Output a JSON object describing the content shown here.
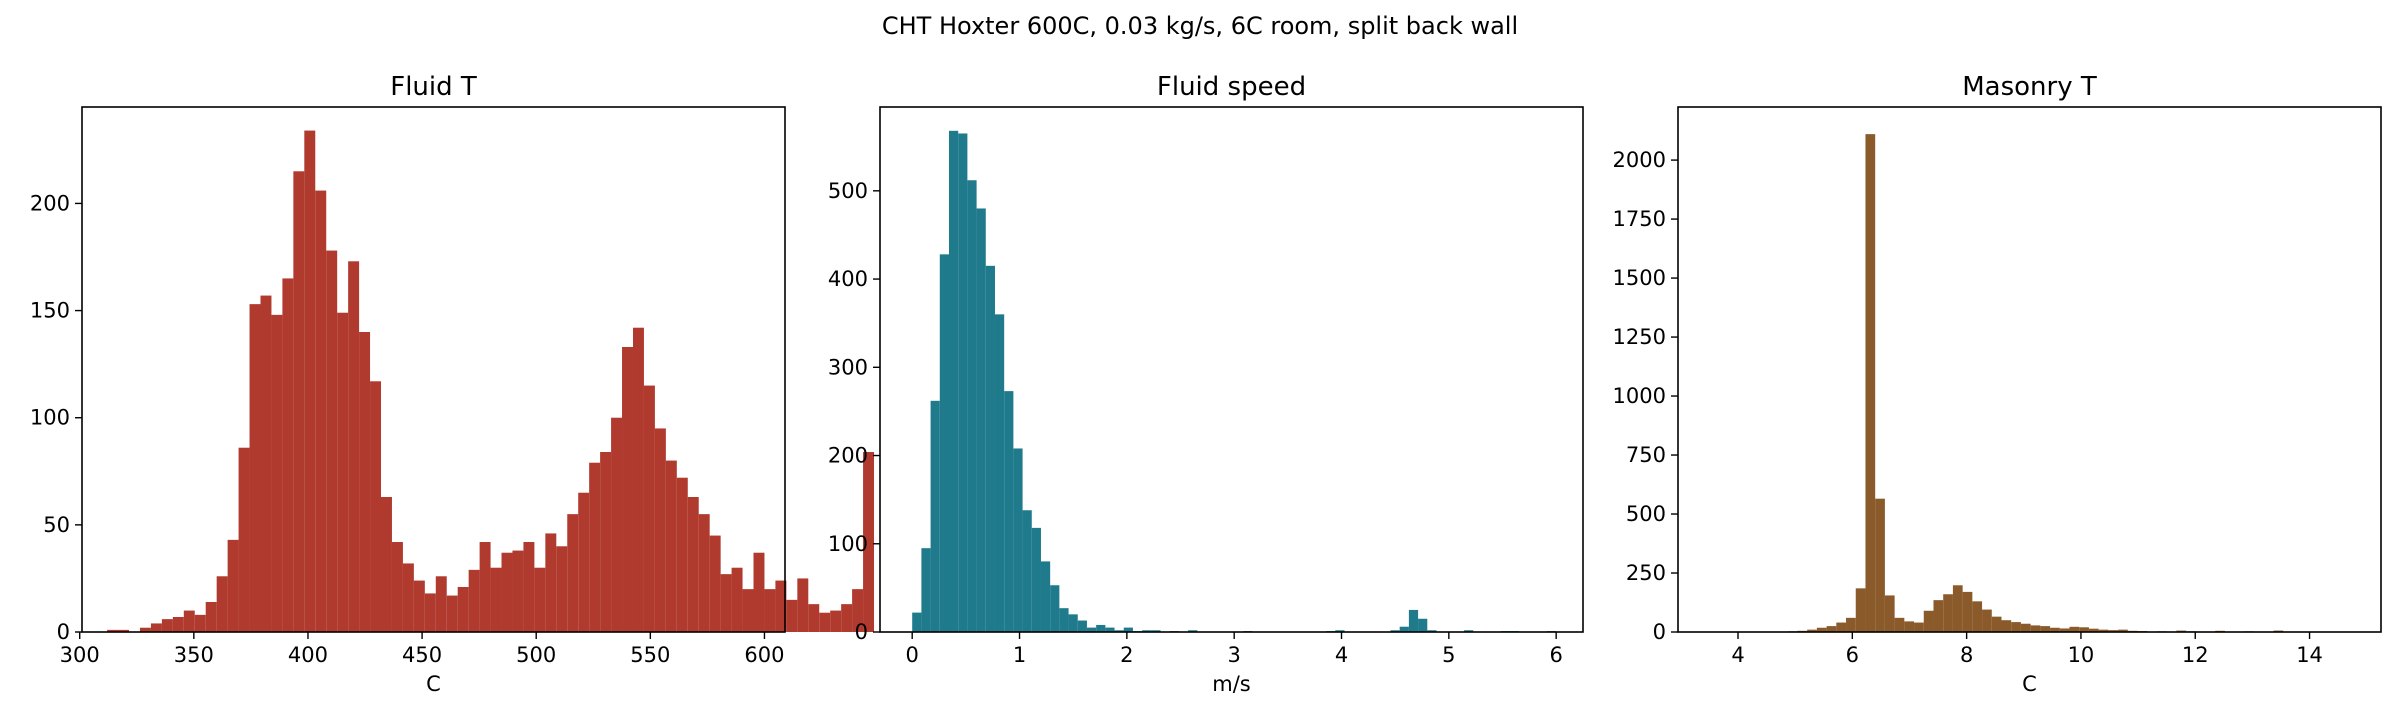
{
  "figure_title": "CHT Hoxter 600C, 0.03 kg/s, 6C room, split back wall",
  "chart_data": [
    {
      "type": "bar",
      "title": "Fluid T",
      "xlabel": "C",
      "ylabel": "",
      "color": "#b03a2e",
      "xlim": [
        301,
        609
      ],
      "ylim": [
        0,
        245
      ],
      "xticks": [
        300,
        350,
        400,
        450,
        500,
        550,
        600
      ],
      "yticks": [
        0,
        50,
        100,
        150,
        200
      ],
      "bin_start": 312,
      "bin_width": 4.8,
      "values": [
        1,
        1,
        0,
        2,
        4,
        6,
        7,
        10,
        8,
        14,
        26,
        43,
        86,
        153,
        157,
        148,
        165,
        215,
        234,
        206,
        178,
        149,
        173,
        140,
        117,
        63,
        42,
        32,
        24,
        18,
        26,
        17,
        21,
        29,
        42,
        30,
        37,
        38,
        42,
        30,
        46,
        40,
        55,
        65,
        79,
        84,
        100,
        133,
        142,
        115,
        95,
        80,
        72,
        63,
        55,
        45,
        27,
        30,
        20,
        37,
        20,
        24,
        15,
        25,
        13,
        9,
        10,
        13,
        20,
        84
      ]
    },
    {
      "type": "bar",
      "title": "Fluid speed",
      "xlabel": "m/s",
      "ylabel": "",
      "color": "#1f7a8c",
      "xlim": [
        -0.3,
        6.25
      ],
      "ylim": [
        0,
        595
      ],
      "xticks": [
        0,
        1,
        2,
        3,
        4,
        5,
        6
      ],
      "yticks": [
        0,
        100,
        200,
        300,
        400,
        500
      ],
      "bin_start": 0,
      "bin_width": 0.0857,
      "values": [
        22,
        95,
        262,
        428,
        568,
        565,
        512,
        480,
        415,
        360,
        273,
        208,
        138,
        118,
        80,
        53,
        27,
        20,
        13,
        5,
        8,
        5,
        2,
        5,
        1,
        2,
        2,
        0,
        1,
        0,
        2,
        0,
        0,
        0,
        0,
        0,
        1,
        0,
        0,
        0,
        0,
        0,
        0,
        0,
        0,
        1,
        2,
        0,
        0,
        0,
        0,
        0,
        2,
        6,
        25,
        15,
        2,
        0,
        0,
        0,
        2,
        0,
        0,
        0,
        1,
        1,
        0,
        0,
        0,
        1
      ]
    },
    {
      "type": "bar",
      "title": "Masonry T",
      "xlabel": "C",
      "ylabel": "",
      "color": "#8a5a2b",
      "xlim": [
        2.95,
        15.25
      ],
      "ylim": [
        0,
        2225
      ],
      "xticks": [
        4,
        6,
        8,
        10,
        12,
        14
      ],
      "yticks": [
        0,
        250,
        500,
        750,
        1000,
        1250,
        1500,
        1750,
        2000
      ],
      "bin_start": 3.0,
      "bin_width": 0.17,
      "values": [
        0,
        0,
        0,
        0,
        0,
        0,
        0,
        0,
        0,
        0,
        0,
        3,
        5,
        10,
        18,
        25,
        40,
        60,
        185,
        2110,
        565,
        155,
        60,
        45,
        40,
        90,
        135,
        160,
        198,
        170,
        130,
        95,
        65,
        50,
        42,
        35,
        28,
        25,
        18,
        15,
        22,
        20,
        14,
        10,
        8,
        10,
        5,
        4,
        2,
        3,
        2,
        6,
        3,
        2,
        2,
        5,
        2,
        2,
        3,
        0,
        0,
        6,
        2,
        2,
        1,
        1,
        0,
        0,
        0,
        0,
        0
      ]
    }
  ]
}
